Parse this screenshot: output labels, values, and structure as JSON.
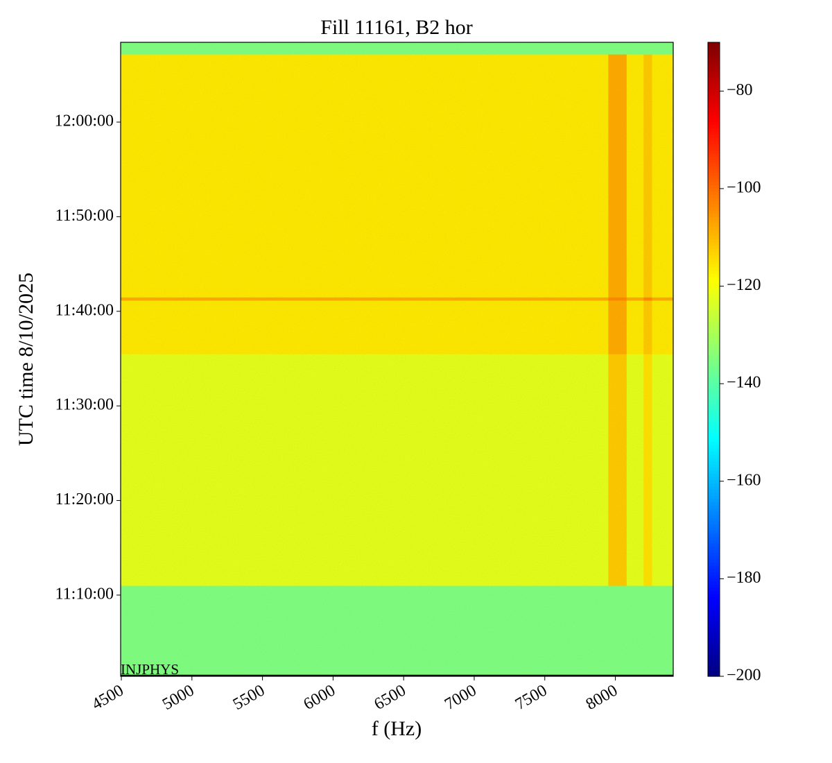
{
  "chart_data": {
    "type": "heatmap",
    "title": "Fill 11161, B2 hor",
    "x_label": "f (Hz)",
    "y_label": "UTC time 8/10/2025",
    "annotation": "INJPHYS",
    "colormap": "jet",
    "x_edges": [
      4495,
      7950,
      8080,
      8200,
      8260,
      8410
    ],
    "y_edges": [
      39685,
      40261,
      41730,
      42070,
      42090,
      43631,
      43706
    ],
    "z": [
      [
        -135,
        -135,
        -135,
        -135,
        -135
      ],
      [
        -122,
        -112,
        -122,
        -115,
        -122
      ],
      [
        -116,
        -108,
        -116,
        -112,
        -116
      ],
      [
        -108,
        -104,
        -108,
        -104,
        -108
      ],
      [
        -116,
        -108,
        -116,
        -112,
        -116
      ],
      [
        -135,
        -135,
        -135,
        -135,
        -135
      ]
    ],
    "xlim": [
      4495,
      8410
    ],
    "xticks": [
      4500,
      5000,
      5500,
      6000,
      6500,
      7000,
      7500,
      8000
    ],
    "ylim": [
      39685,
      43706
    ],
    "yticks": [
      {
        "value": 40200,
        "label": "11:10:00"
      },
      {
        "value": 40800,
        "label": "11:20:00"
      },
      {
        "value": 41400,
        "label": "11:30:00"
      },
      {
        "value": 42000,
        "label": "11:40:00"
      },
      {
        "value": 42600,
        "label": "11:50:00"
      },
      {
        "value": 43200,
        "label": "12:00:00"
      }
    ],
    "clim": [
      -200,
      -70
    ],
    "cticks": [
      {
        "value": -200,
        "label": "−200"
      },
      {
        "value": -180,
        "label": "−180"
      },
      {
        "value": -160,
        "label": "−160"
      },
      {
        "value": -140,
        "label": "−140"
      },
      {
        "value": -120,
        "label": "−120"
      },
      {
        "value": -100,
        "label": "−100"
      },
      {
        "value": -80,
        "label": "−80"
      }
    ]
  }
}
